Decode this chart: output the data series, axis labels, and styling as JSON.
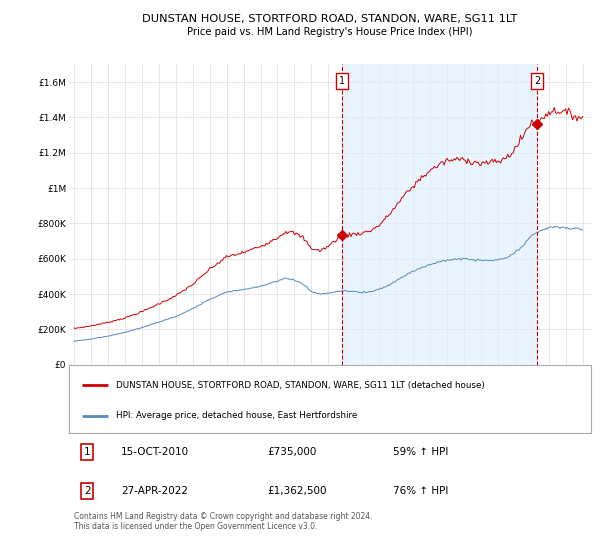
{
  "title": "DUNSTAN HOUSE, STORTFORD ROAD, STANDON, WARE, SG11 1LT",
  "subtitle": "Price paid vs. HM Land Registry's House Price Index (HPI)",
  "red_label": "DUNSTAN HOUSE, STORTFORD ROAD, STANDON, WARE, SG11 1LT (detached house)",
  "blue_label": "HPI: Average price, detached house, East Hertfordshire",
  "copyright": "Contains HM Land Registry data © Crown copyright and database right 2024.\nThis data is licensed under the Open Government Licence v3.0.",
  "sale1_label": "15-OCT-2010",
  "sale1_price": "£735,000",
  "sale1_hpi": "59% ↑ HPI",
  "sale1_num": "1",
  "sale2_label": "27-APR-2022",
  "sale2_price": "£1,362,500",
  "sale2_hpi": "76% ↑ HPI",
  "sale2_num": "2",
  "ylim": [
    0,
    1700000
  ],
  "yticks": [
    0,
    200000,
    400000,
    600000,
    800000,
    1000000,
    1200000,
    1400000,
    1600000
  ],
  "ytick_labels": [
    "£0",
    "£200K",
    "£400K",
    "£600K",
    "£800K",
    "£1M",
    "£1.2M",
    "£1.4M",
    "£1.6M"
  ],
  "red_color": "#cc0000",
  "blue_color": "#5588bb",
  "shade_color": "#ddeeff",
  "grid_color": "#dddddd",
  "bg_color": "#ffffff",
  "sale1_x": 2010.79,
  "sale1_y": 735000,
  "sale2_x": 2022.32,
  "sale2_y": 1362500,
  "xmin": 1994.7,
  "xmax": 2025.5
}
